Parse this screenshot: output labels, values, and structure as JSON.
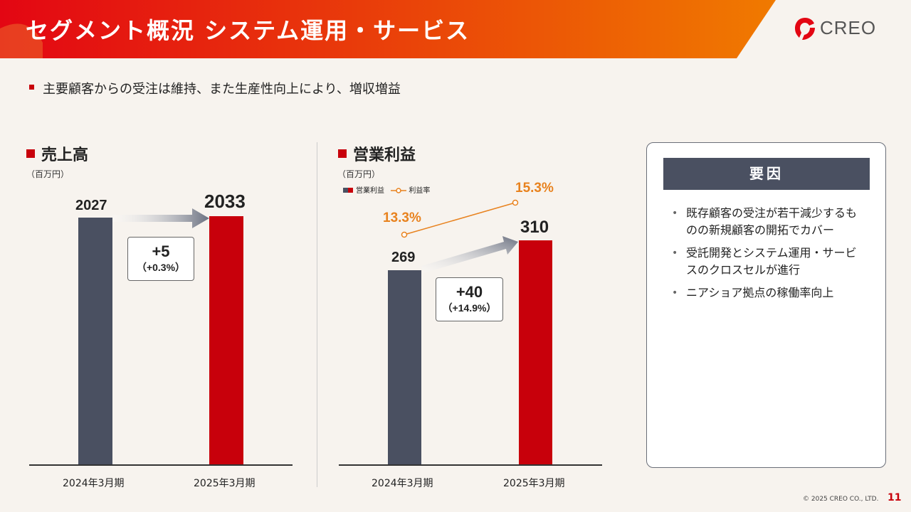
{
  "header": {
    "title": "セグメント概況 システム運用・サービス",
    "logo_text": "CREO",
    "gradient_start": "#e30613",
    "gradient_end": "#f07a00"
  },
  "subtitle": "主要顧客からの受注は維持、また生産性向上により、増収増益",
  "sales": {
    "title": "売上高",
    "unit": "（百万円）",
    "delta_main": "+5",
    "delta_pct": "（+0.3%）",
    "value_labels": [
      "2027",
      "2033"
    ],
    "categories": [
      "2024年3月期",
      "2025年3月期"
    ]
  },
  "profit": {
    "title": "営業利益",
    "unit": "（百万円）",
    "legend_bar": "営業利益",
    "legend_line": "利益率",
    "delta_main": "+40",
    "delta_pct": "（+14.9%）",
    "value_labels": [
      "269",
      "310"
    ],
    "rate_labels": [
      "13.3%",
      "15.3%"
    ],
    "categories": [
      "2024年3月期",
      "2025年3月期"
    ]
  },
  "factors": {
    "header": "要因",
    "items": [
      "既存顧客の受注が若干減少するものの新規顧客の開拓でカバー",
      "受託開発とシステム運用・サービスのクロスセルが進行",
      "ニアショア拠点の稼働率向上"
    ]
  },
  "footer": {
    "copyright": "© 2025 CREO CO., LTD.",
    "page": "11"
  },
  "chart_data": [
    {
      "type": "bar",
      "title": "売上高",
      "ylabel": "（百万円）",
      "categories": [
        "2024年3月期",
        "2025年3月期"
      ],
      "values": [
        2027,
        2033
      ],
      "colors": [
        "#4a5061",
        "#c8000b"
      ]
    },
    {
      "type": "bar",
      "title": "営業利益",
      "ylabel": "（百万円）",
      "categories": [
        "2024年3月期",
        "2025年3月期"
      ],
      "series": [
        {
          "name": "営業利益",
          "values": [
            269,
            310
          ],
          "type": "bar"
        },
        {
          "name": "利益率",
          "values": [
            13.3,
            15.3
          ],
          "unit": "%",
          "type": "line",
          "color": "#e8821e"
        }
      ],
      "legend": "top-left"
    }
  ]
}
